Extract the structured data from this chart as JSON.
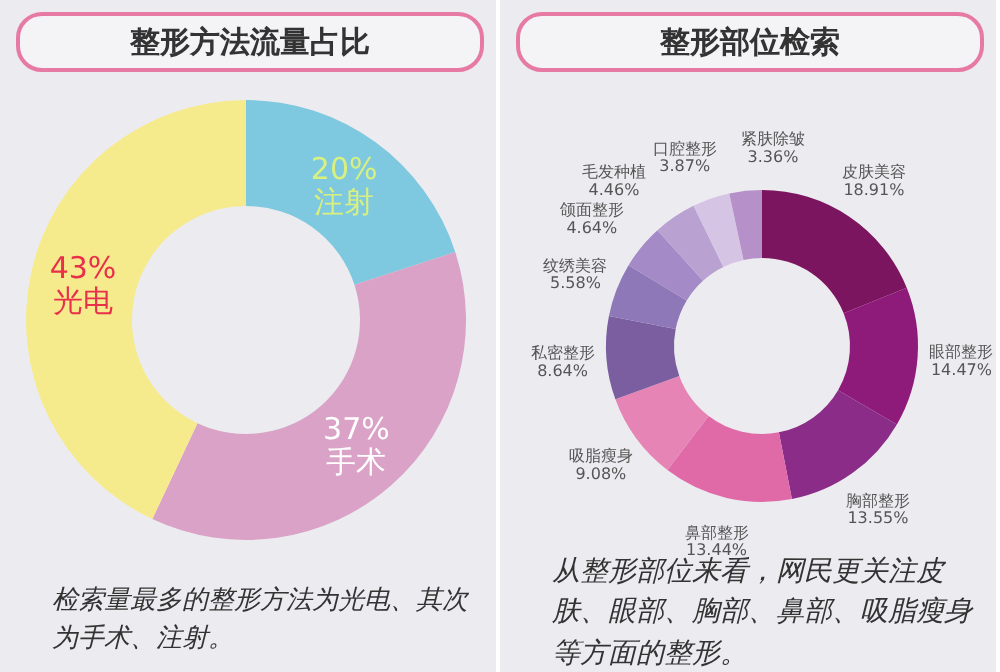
{
  "chart_data": [
    {
      "type": "donut",
      "title": "整形方法流量占比",
      "categories": [
        "注射",
        "手术",
        "光电"
      ],
      "values": [
        20,
        37,
        43
      ],
      "colors": [
        "#7ec8e0",
        "#d9a2c6",
        "#f6eb8c"
      ],
      "value_labels": [
        "20%",
        "37%",
        "43%"
      ],
      "annotations": [
        "检索量最多的整形方法为光电、其次为手术、注射。"
      ]
    },
    {
      "type": "donut",
      "title": "整形部位检索",
      "categories": [
        "皮肤美容",
        "眼部整形",
        "胸部整形",
        "鼻部整形",
        "吸脂瘦身",
        "私密整形",
        "纹绣美容",
        "颌面整形",
        "毛发种植",
        "口腔整形",
        "紧肤除皱"
      ],
      "values": [
        18.91,
        14.47,
        13.55,
        13.44,
        9.08,
        8.64,
        5.58,
        4.64,
        4.46,
        3.87,
        3.36
      ],
      "colors": [
        "#7b1560",
        "#8e1a7a",
        "#8a2c88",
        "#e06aa8",
        "#e685b5",
        "#7a5ea0",
        "#8f78b8",
        "#a48ac6",
        "#b9a2d2",
        "#d5c4e4",
        "#b690c8"
      ],
      "value_labels": [
        "18.91%",
        "14.47%",
        "13.55%",
        "13.44%",
        "9.08%",
        "8.64%",
        "5.58%",
        "4.64%",
        "4.46%",
        "3.87%",
        "3.36%"
      ],
      "annotations": [
        "从整形部位来看，网民更关注皮肤、眼部、胸部、鼻部、吸脂瘦身等方面的整形。"
      ]
    }
  ]
}
